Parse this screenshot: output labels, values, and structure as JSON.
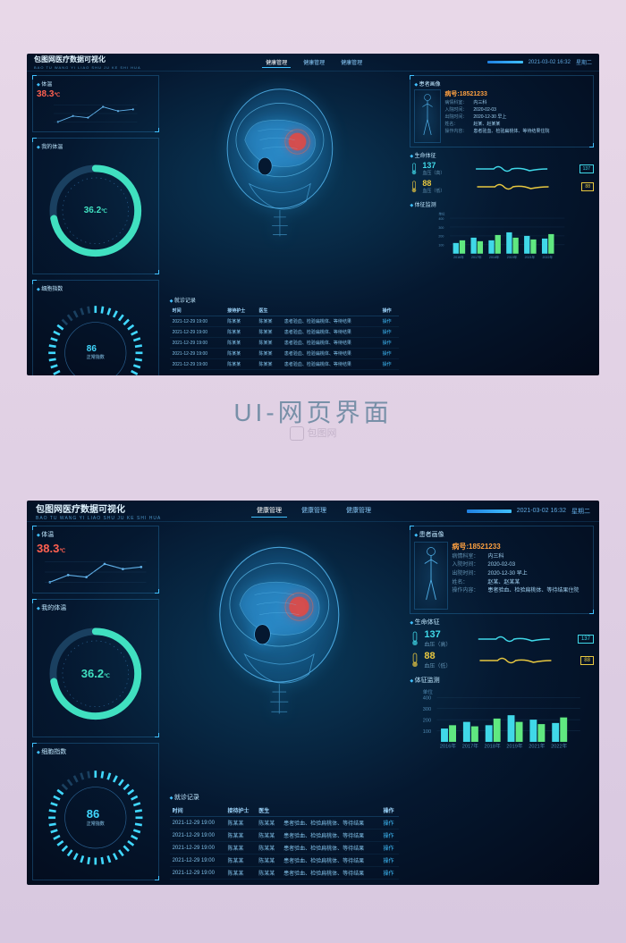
{
  "header": {
    "logo_title": "包图网医疗数据可视化",
    "logo_sub": "BAO TU WANG YI LIAO SHU JU KE SHI HUA",
    "nav": [
      "健康管理",
      "健康管理",
      "健康管理"
    ],
    "datetime": "2021-03-02 16:32",
    "weekday": "星期二"
  },
  "temp": {
    "title": "体温",
    "value": "38.3",
    "unit": "℃",
    "series": [
      36.5,
      37.2,
      37.0,
      38.3,
      37.8,
      38.0
    ],
    "line_color": "#60b0e8",
    "value_color": "#ff6050"
  },
  "patient_temp": {
    "title": "我的体温",
    "value": "36.2",
    "unit": "℃",
    "ring_color": "#40e0c0",
    "ring_pct": 72
  },
  "cell_index": {
    "title": "细胞指数",
    "value": "86",
    "sub": "正常指数",
    "ring_color": "#40d8ff",
    "ring_pct": 86
  },
  "visit": {
    "title": "就诊记录",
    "columns": [
      "时间",
      "接待护士",
      "医生",
      "",
      "操作"
    ],
    "op_label": "操作",
    "rows": [
      [
        "2021-12-29 19:00",
        "陈某某",
        "陈某某",
        "患者验血、检验扁桃体、等待结果"
      ],
      [
        "2021-12-29 19:00",
        "陈某某",
        "陈某某",
        "患者验血、检验扁桃体、等待结果"
      ],
      [
        "2021-12-29 19:00",
        "陈某某",
        "陈某某",
        "患者验血、检验扁桃体、等待结果"
      ],
      [
        "2021-12-29 19:00",
        "陈某某",
        "陈某某",
        "患者验血、检验扁桃体、等待结果"
      ],
      [
        "2021-12-29 19:00",
        "陈某某",
        "陈某某",
        "患者验血、检验扁桃体、等待结果"
      ]
    ]
  },
  "patient": {
    "title": "患者画像",
    "no_label": "病号:",
    "no": "18521233",
    "fields": [
      {
        "label": "病情科室：",
        "value": "内三科"
      },
      {
        "label": "入院时间：",
        "value": "2020-02-03"
      },
      {
        "label": "出院时间：",
        "value": "2020-12-30 早上"
      },
      {
        "label": "姓名：",
        "value": "赵某、赵某某"
      },
      {
        "label": "操作内容：",
        "value": "患者验血、检验扁桃体、等待结果住院"
      }
    ]
  },
  "vitals": {
    "title": "生命体征",
    "items": [
      {
        "icon": "thermo",
        "value": "137",
        "label": "血压（高）",
        "badge": "137",
        "color": "#40d8e8"
      },
      {
        "icon": "thermo",
        "value": "88",
        "label": "血压（低）",
        "badge": "88",
        "color": "#e8c840"
      }
    ]
  },
  "monitor": {
    "title": "体征监测",
    "unit_label": "单位",
    "y_ticks": [
      400,
      300,
      200,
      100
    ],
    "x_ticks": [
      "2016年",
      "2017年",
      "2018年",
      "2019年",
      "2021年",
      "2022年"
    ],
    "series1": [
      120,
      180,
      150,
      240,
      200,
      170
    ],
    "series2": [
      150,
      140,
      210,
      180,
      160,
      220
    ],
    "color1": "#40d8e8",
    "color2": "#60e880",
    "grid_color": "#1a4060"
  },
  "page": {
    "title": "UI-网页界面",
    "watermark": "包图网"
  }
}
